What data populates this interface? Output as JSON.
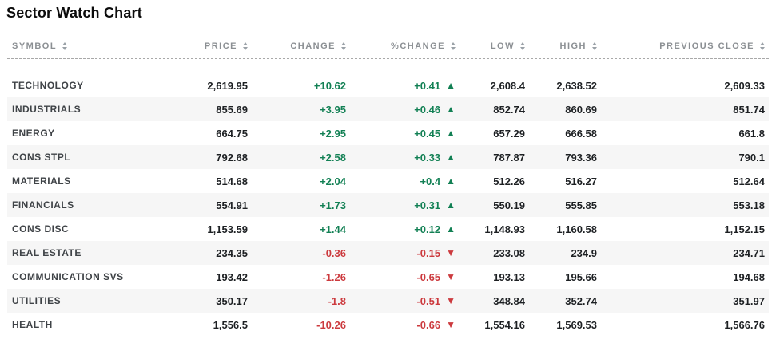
{
  "page": {
    "title": "Sector Watch Chart"
  },
  "icons": {
    "sort_arrows": "stacked up/down triangles",
    "up_triangle": "▲",
    "down_triangle": "▼"
  },
  "colors": {
    "positive": "#128054",
    "negative": "#cc3a3e",
    "stripe": "#f6f6f6",
    "header_text": "#8b8f93",
    "divider": "#a8a8a8",
    "title": "#0c0c0c",
    "number": "#1d2023",
    "symbol": "#3f4347"
  },
  "table": {
    "columns": [
      {
        "key": "symbol",
        "label": "SYMBOL",
        "align": "left",
        "sortable": true
      },
      {
        "key": "price",
        "label": "PRICE",
        "align": "right",
        "sortable": true
      },
      {
        "key": "change",
        "label": "CHANGE",
        "align": "right",
        "sortable": true
      },
      {
        "key": "pct_change",
        "label": "%CHANGE",
        "align": "right",
        "sortable": true
      },
      {
        "key": "low",
        "label": "LOW",
        "align": "right",
        "sortable": true
      },
      {
        "key": "high",
        "label": "HIGH",
        "align": "right",
        "sortable": true
      },
      {
        "key": "prev_close",
        "label": "PREVIOUS CLOSE",
        "align": "right",
        "sortable": true
      }
    ],
    "rows": [
      {
        "symbol": "TECHNOLOGY",
        "price": "2,619.95",
        "change": "+10.62",
        "pct_change": "+0.41",
        "direction": "up",
        "low": "2,608.4",
        "high": "2,638.52",
        "prev_close": "2,609.33"
      },
      {
        "symbol": "INDUSTRIALS",
        "price": "855.69",
        "change": "+3.95",
        "pct_change": "+0.46",
        "direction": "up",
        "low": "852.74",
        "high": "860.69",
        "prev_close": "851.74"
      },
      {
        "symbol": "ENERGY",
        "price": "664.75",
        "change": "+2.95",
        "pct_change": "+0.45",
        "direction": "up",
        "low": "657.29",
        "high": "666.58",
        "prev_close": "661.8"
      },
      {
        "symbol": "CONS STPL",
        "price": "792.68",
        "change": "+2.58",
        "pct_change": "+0.33",
        "direction": "up",
        "low": "787.87",
        "high": "793.36",
        "prev_close": "790.1"
      },
      {
        "symbol": "MATERIALS",
        "price": "514.68",
        "change": "+2.04",
        "pct_change": "+0.4",
        "direction": "up",
        "low": "512.26",
        "high": "516.27",
        "prev_close": "512.64"
      },
      {
        "symbol": "FINANCIALS",
        "price": "554.91",
        "change": "+1.73",
        "pct_change": "+0.31",
        "direction": "up",
        "low": "550.19",
        "high": "555.85",
        "prev_close": "553.18"
      },
      {
        "symbol": "CONS DISC",
        "price": "1,153.59",
        "change": "+1.44",
        "pct_change": "+0.12",
        "direction": "up",
        "low": "1,148.93",
        "high": "1,160.58",
        "prev_close": "1,152.15"
      },
      {
        "symbol": "REAL ESTATE",
        "price": "234.35",
        "change": "-0.36",
        "pct_change": "-0.15",
        "direction": "down",
        "low": "233.08",
        "high": "234.9",
        "prev_close": "234.71"
      },
      {
        "symbol": "COMMUNICATION SVS",
        "price": "193.42",
        "change": "-1.26",
        "pct_change": "-0.65",
        "direction": "down",
        "low": "193.13",
        "high": "195.66",
        "prev_close": "194.68"
      },
      {
        "symbol": "UTILITIES",
        "price": "350.17",
        "change": "-1.8",
        "pct_change": "-0.51",
        "direction": "down",
        "low": "348.84",
        "high": "352.74",
        "prev_close": "351.97"
      },
      {
        "symbol": "HEALTH",
        "price": "1,556.5",
        "change": "-10.26",
        "pct_change": "-0.66",
        "direction": "down",
        "low": "1,554.16",
        "high": "1,569.53",
        "prev_close": "1,566.76"
      }
    ]
  }
}
